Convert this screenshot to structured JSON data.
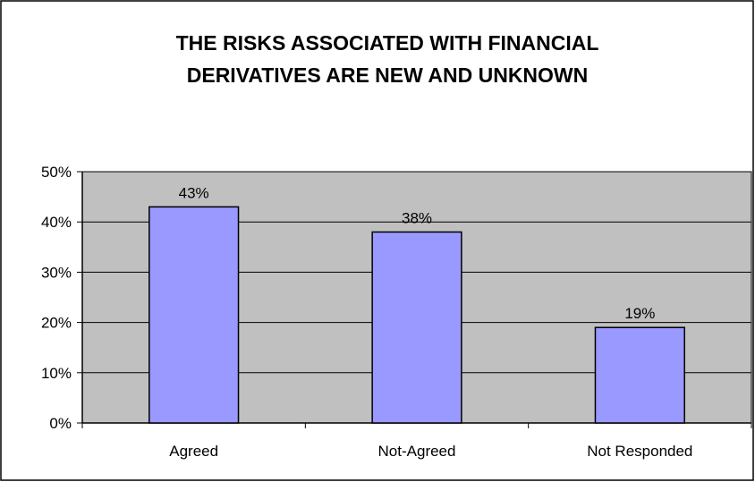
{
  "chart_data": {
    "type": "bar",
    "title_lines": [
      "THE RISKS ASSOCIATED WITH FINANCIAL",
      "DERIVATIVES ARE NEW AND UNKNOWN"
    ],
    "categories": [
      "Agreed",
      "Not-Agreed",
      "Not Responded"
    ],
    "values": [
      43,
      38,
      19
    ],
    "data_labels": [
      "43%",
      "38%",
      "19%"
    ],
    "ylim": [
      0,
      50
    ],
    "yticks": [
      0,
      10,
      20,
      30,
      40,
      50
    ],
    "ytick_labels": [
      "0%",
      "10%",
      "20%",
      "30%",
      "40%",
      "50%"
    ],
    "xlabel": "",
    "ylabel": "",
    "grid": true,
    "legend": "none",
    "colors": {
      "bar_fill": "#9999ff",
      "bar_stroke": "#000000",
      "plot_background": "#c0c0c0",
      "gridline": "#000000",
      "frame": "#000000"
    }
  }
}
